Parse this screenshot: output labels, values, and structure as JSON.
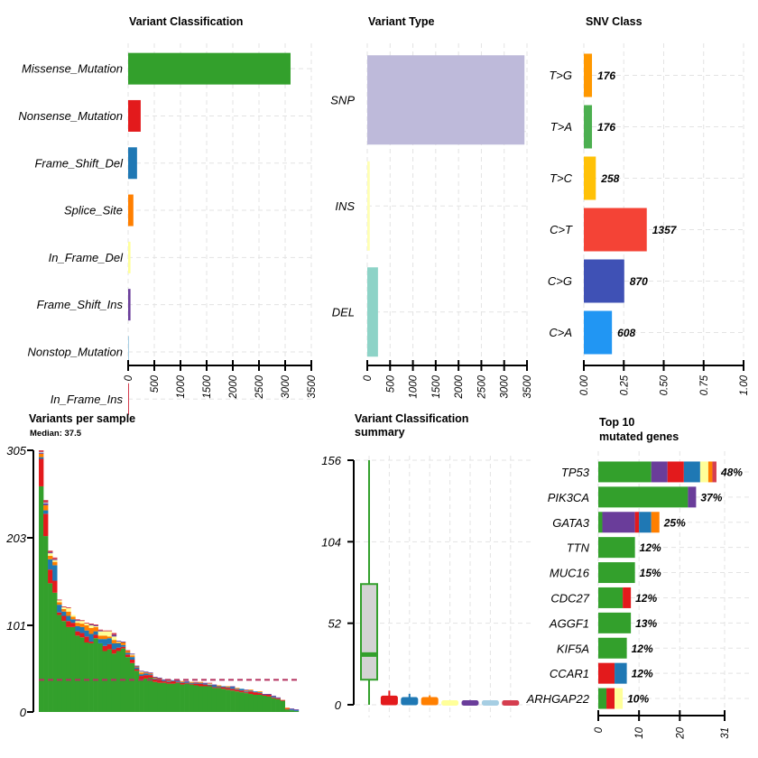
{
  "chart_data": [
    {
      "id": "variant_classification",
      "type": "bar",
      "orientation": "horizontal",
      "title": "Variant Classification",
      "categories": [
        "Missense_Mutation",
        "Nonsense_Mutation",
        "Frame_Shift_Del",
        "Splice_Site",
        "In_Frame_Del",
        "Frame_Shift_Ins",
        "Nonstop_Mutation",
        "In_Frame_Ins"
      ],
      "values": [
        3103,
        240,
        170,
        100,
        45,
        45,
        8,
        8
      ],
      "colors": [
        "#33a02c",
        "#e31a1c",
        "#1f78b4",
        "#ff7f00",
        "#ffff99",
        "#6a3d9a",
        "#a6cee3",
        "#d53e4f"
      ],
      "xlim": [
        0,
        3500
      ],
      "xticks": [
        "0",
        "500",
        "1000",
        "1500",
        "2000",
        "2500",
        "3000",
        "3500"
      ],
      "grid": true
    },
    {
      "id": "variant_type",
      "type": "bar",
      "orientation": "horizontal",
      "title": "Variant Type",
      "categories": [
        "SNP",
        "INS",
        "DEL"
      ],
      "values": [
        3445,
        55,
        235
      ],
      "colors": [
        "#bebada",
        "#ffffb3",
        "#8dd3c7"
      ],
      "xlim": [
        0,
        3500
      ],
      "xticks": [
        "0",
        "500",
        "1000",
        "1500",
        "2000",
        "2500",
        "3000",
        "3500"
      ],
      "grid": true
    },
    {
      "id": "snv_class",
      "type": "bar",
      "orientation": "horizontal",
      "title": "SNV Class",
      "categories": [
        "T>G",
        "T>A",
        "T>C",
        "C>T",
        "C>G",
        "C>A"
      ],
      "counts": [
        176,
        176,
        258,
        1357,
        870,
        608
      ],
      "values": [
        0.051,
        0.051,
        0.075,
        0.394,
        0.253,
        0.176
      ],
      "labels": [
        "176",
        "176",
        "258",
        "1357",
        "870",
        "608"
      ],
      "colors": [
        "#ff9800",
        "#4caf50",
        "#ffc107",
        "#f44336",
        "#3f51b5",
        "#2196f3"
      ],
      "xlim": [
        0,
        1
      ],
      "xticks": [
        "0.00",
        "0.25",
        "0.50",
        "0.75",
        "1.00"
      ],
      "grid": true
    },
    {
      "id": "variants_per_sample",
      "type": "bar",
      "stacked": true,
      "title": "Variants per sample",
      "subtitle": "Median: 37.5",
      "median": 37.5,
      "ylim": [
        0,
        305
      ],
      "yticks": [
        "0",
        "101",
        "203",
        "305"
      ],
      "series_order": [
        "Missense_Mutation",
        "Nonsense_Mutation",
        "Frame_Shift_Del",
        "Splice_Site",
        "In_Frame_Del",
        "Frame_Shift_Ins",
        "Nonstop_Mutation",
        "In_Frame_Ins"
      ],
      "colors": [
        "#33a02c",
        "#e31a1c",
        "#1f78b4",
        "#ff7f00",
        "#ffff99",
        "#6a3d9a",
        "#a6cee3",
        "#d53e4f"
      ],
      "median_line_color": "#b5315e",
      "samples": [
        [
          263,
          32,
          2,
          4,
          0,
          1,
          1,
          2
        ],
        [
          205,
          26,
          4,
          6,
          0,
          2,
          1,
          3
        ],
        [
          150,
          16,
          12,
          4,
          3,
          1,
          0,
          2
        ],
        [
          139,
          14,
          18,
          4,
          2,
          1,
          0,
          2
        ],
        [
          113,
          3,
          9,
          3,
          2,
          0,
          0,
          1
        ],
        [
          106,
          6,
          5,
          3,
          2,
          0,
          0,
          1
        ],
        [
          99,
          7,
          6,
          5,
          4,
          0,
          0,
          1
        ],
        [
          99,
          5,
          4,
          3,
          2,
          0,
          0,
          0
        ],
        [
          89,
          5,
          6,
          4,
          2,
          1,
          0,
          1
        ],
        [
          87,
          5,
          7,
          4,
          3,
          0,
          0,
          1
        ],
        [
          81,
          7,
          7,
          6,
          2,
          0,
          0,
          1
        ],
        [
          80,
          2,
          9,
          7,
          3,
          1,
          0,
          1
        ],
        [
          86,
          4,
          4,
          5,
          1,
          1,
          0,
          1
        ],
        [
          80,
          0,
          5,
          4,
          5,
          1,
          0,
          1
        ],
        [
          71,
          6,
          8,
          4,
          5,
          0,
          0,
          1
        ],
        [
          73,
          6,
          7,
          2,
          6,
          0,
          0,
          1
        ],
        [
          68,
          5,
          7,
          4,
          4,
          2,
          0,
          2
        ],
        [
          71,
          4,
          5,
          1,
          1,
          1,
          0,
          0
        ],
        [
          74,
          2,
          2,
          3,
          0,
          1,
          0,
          0
        ],
        [
          64,
          3,
          2,
          2,
          0,
          0,
          0,
          1
        ],
        [
          57,
          4,
          3,
          2,
          1,
          1,
          0,
          0
        ],
        [
          48,
          2,
          2,
          1,
          0,
          1,
          0,
          0
        ],
        [
          38,
          4,
          2,
          2,
          1,
          1,
          0,
          0
        ],
        [
          39,
          4,
          2,
          1,
          0,
          1,
          0,
          0
        ],
        [
          40,
          3,
          1,
          1,
          0,
          1,
          0,
          0
        ],
        [
          35,
          3,
          1,
          1,
          0,
          1,
          0,
          0
        ],
        [
          34,
          3,
          1,
          1,
          0,
          1,
          0,
          0
        ],
        [
          34,
          2,
          1,
          0,
          0,
          1,
          0,
          0
        ],
        [
          33,
          2,
          1,
          1,
          0,
          1,
          0,
          0
        ],
        [
          33,
          3,
          1,
          0,
          0,
          0,
          0,
          0
        ],
        [
          34,
          1,
          1,
          0,
          0,
          1,
          0,
          0
        ],
        [
          32,
          2,
          1,
          1,
          0,
          0,
          0,
          0
        ],
        [
          33,
          1,
          1,
          0,
          0,
          1,
          0,
          0
        ],
        [
          32,
          1,
          1,
          1,
          0,
          0,
          0,
          0
        ],
        [
          31,
          2,
          1,
          0,
          0,
          0,
          0,
          1
        ],
        [
          30,
          3,
          1,
          1,
          0,
          0,
          0,
          0
        ],
        [
          30,
          2,
          1,
          0,
          0,
          1,
          0,
          0
        ],
        [
          30,
          1,
          1,
          0,
          1,
          0,
          0,
          1
        ],
        [
          28,
          1,
          2,
          0,
          0,
          1,
          0,
          0
        ],
        [
          28,
          1,
          1,
          1,
          0,
          0,
          0,
          0
        ],
        [
          27,
          2,
          1,
          0,
          0,
          0,
          0,
          0
        ],
        [
          26,
          2,
          1,
          1,
          0,
          0,
          0,
          0
        ],
        [
          25,
          2,
          2,
          0,
          0,
          1,
          0,
          0
        ],
        [
          24,
          2,
          1,
          1,
          0,
          0,
          0,
          0
        ],
        [
          23,
          2,
          2,
          0,
          0,
          0,
          0,
          0
        ],
        [
          22,
          1,
          1,
          1,
          0,
          1,
          0,
          0
        ],
        [
          21,
          3,
          1,
          1,
          0,
          0,
          0,
          0
        ],
        [
          20,
          3,
          1,
          0,
          0,
          0,
          0,
          0
        ],
        [
          20,
          2,
          1,
          1,
          0,
          0,
          0,
          0
        ],
        [
          19,
          1,
          0,
          0,
          0,
          1,
          0,
          0
        ],
        [
          18,
          2,
          0,
          0,
          0,
          1,
          0,
          0
        ],
        [
          16,
          1,
          1,
          0,
          0,
          1,
          0,
          0
        ],
        [
          15,
          1,
          0,
          0,
          0,
          1,
          0,
          0
        ],
        [
          13,
          1,
          0,
          0,
          0,
          0,
          0,
          0
        ],
        [
          3,
          1,
          0,
          1,
          0,
          0,
          0,
          0
        ],
        [
          2,
          0,
          1,
          0,
          0,
          1,
          0,
          0
        ],
        [
          1,
          0,
          1,
          0,
          0,
          1,
          0,
          0
        ]
      ],
      "grid": false
    },
    {
      "id": "variant_classification_summary",
      "type": "boxplot",
      "title": "Variant Classification summary",
      "title_lines": [
        "Variant Classification",
        "summary"
      ],
      "ylim": [
        0,
        156
      ],
      "yticks": [
        "0",
        "52",
        "104",
        "156"
      ],
      "boxes": [
        {
          "name": "Missense_Mutation",
          "color": "#33a02c",
          "min": 0,
          "q1": 16,
          "median": 32,
          "q3": 77,
          "max": 156
        },
        {
          "name": "Nonsense_Mutation",
          "color": "#e31a1c",
          "min": 0,
          "q1": 1,
          "median": 2,
          "q3": 5,
          "max": 9
        },
        {
          "name": "Frame_Shift_Del",
          "color": "#1f78b4",
          "min": 0,
          "q1": 1,
          "median": 2,
          "q3": 4,
          "max": 7
        },
        {
          "name": "Splice_Site",
          "color": "#ff7f00",
          "min": 0,
          "q1": 1,
          "median": 2,
          "q3": 4,
          "max": 6
        },
        {
          "name": "In_Frame_Del",
          "color": "#ffff99",
          "min": 0,
          "q1": 0,
          "median": 1,
          "q3": 2,
          "max": 2
        },
        {
          "name": "Frame_Shift_Ins",
          "color": "#6a3d9a",
          "min": 0,
          "q1": 0,
          "median": 1,
          "q3": 2,
          "max": 3
        },
        {
          "name": "Nonstop_Mutation",
          "color": "#a6cee3",
          "min": 0,
          "q1": 0,
          "median": 1,
          "q3": 2,
          "max": 2
        },
        {
          "name": "In_Frame_Ins",
          "color": "#d53e4f",
          "min": 0,
          "q1": 0,
          "median": 1,
          "q3": 2,
          "max": 2
        }
      ],
      "box_fill": "#d3d3d3",
      "grid": true
    },
    {
      "id": "top10_genes",
      "type": "bar",
      "stacked": true,
      "orientation": "horizontal",
      "title": "Top 10 mutated genes",
      "title_lines": [
        "Top 10",
        "mutated genes"
      ],
      "categories": [
        "TP53",
        "PIK3CA",
        "GATA3",
        "TTN",
        "MUC16",
        "CDC27",
        "AGGF1",
        "KIF5A",
        "CCAR1",
        "ARHGAP22"
      ],
      "percent_labels": [
        "48%",
        "37%",
        "25%",
        "12%",
        "15%",
        "12%",
        "13%",
        "12%",
        "12%",
        "10%"
      ],
      "series_order": [
        "Missense_Mutation",
        "Frame_Shift_Ins",
        "Nonsense_Mutation",
        "Frame_Shift_Del",
        "In_Frame_Del",
        "Splice_Site",
        "In_Frame_Ins"
      ],
      "colors": [
        "#33a02c",
        "#6a3d9a",
        "#e31a1c",
        "#1f78b4",
        "#ffff99",
        "#ff7f00",
        "#d53e4f"
      ],
      "values": [
        [
          13,
          4,
          4,
          4,
          2,
          1,
          1
        ],
        [
          22,
          2,
          0,
          0,
          0,
          0,
          0
        ],
        [
          1,
          8,
          1,
          3,
          0,
          2,
          0
        ],
        [
          9,
          0,
          0,
          0,
          0,
          0,
          0
        ],
        [
          9,
          0,
          0,
          0,
          0,
          0,
          0
        ],
        [
          6,
          0,
          2,
          0,
          0,
          0,
          0
        ],
        [
          8,
          0,
          0,
          0,
          0,
          0,
          0
        ],
        [
          7,
          0,
          0,
          0,
          0,
          0,
          0
        ],
        [
          0,
          0,
          4,
          3,
          0,
          0,
          0
        ],
        [
          2,
          0,
          2,
          0,
          2,
          0,
          0
        ]
      ],
      "xlim": [
        0,
        31
      ],
      "xticks": [
        "0",
        "10",
        "20",
        "31"
      ],
      "xtick_values": [
        0,
        10,
        20,
        31
      ],
      "grid": true
    }
  ]
}
